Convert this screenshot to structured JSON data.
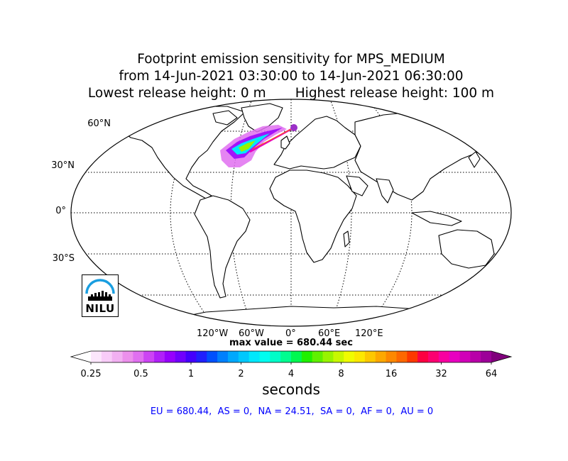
{
  "title": {
    "line1": "Footprint emission sensitivity for MPS_MEDIUM",
    "line2": "from 14-Jun-2021 03:30:00 to 14-Jun-2021 06:30:00",
    "line3": "Lowest release height: 0 m       Highest release height: 100 m"
  },
  "map": {
    "projection": "robinson",
    "lat_labels": [
      "60°N",
      "30°N",
      "0°",
      "30°S"
    ],
    "lon_labels": [
      "120°W",
      "60°W",
      "0°",
      "60°E",
      "120°E"
    ],
    "release_marker_color": "#9b30c8"
  },
  "max_value_text": "max value = 680.44 sec",
  "colorbar": {
    "tick_labels": [
      "0.25",
      "0.5",
      "1",
      "2",
      "4",
      "8",
      "16",
      "32",
      "64"
    ],
    "units": "seconds",
    "colors": [
      "#ffffff",
      "#fce6fc",
      "#f8ccf8",
      "#f2b0f2",
      "#ec90ec",
      "#e070f0",
      "#cc44f4",
      "#b020f8",
      "#9600fc",
      "#7000fc",
      "#4400fc",
      "#2020fc",
      "#0050fc",
      "#0080fc",
      "#00a8fc",
      "#00c8fc",
      "#00e8fc",
      "#00fcf0",
      "#00fcc8",
      "#00fc90",
      "#00f850",
      "#20f000",
      "#60f000",
      "#98f400",
      "#c8f800",
      "#f0fc00",
      "#fce800",
      "#fcc800",
      "#fca800",
      "#fc8800",
      "#fc6800",
      "#fc3800",
      "#fc0040",
      "#fc0070",
      "#f800a0",
      "#e800c0",
      "#d000b8",
      "#b800a8",
      "#9c0098",
      "#80007c"
    ]
  },
  "footer": "EU = 680.44,  AS = 0,  NA = 24.51,  SA = 0,  AF = 0,  AU = 0",
  "logo": {
    "text": "NILU",
    "arc_color": "#1a9ee0"
  }
}
